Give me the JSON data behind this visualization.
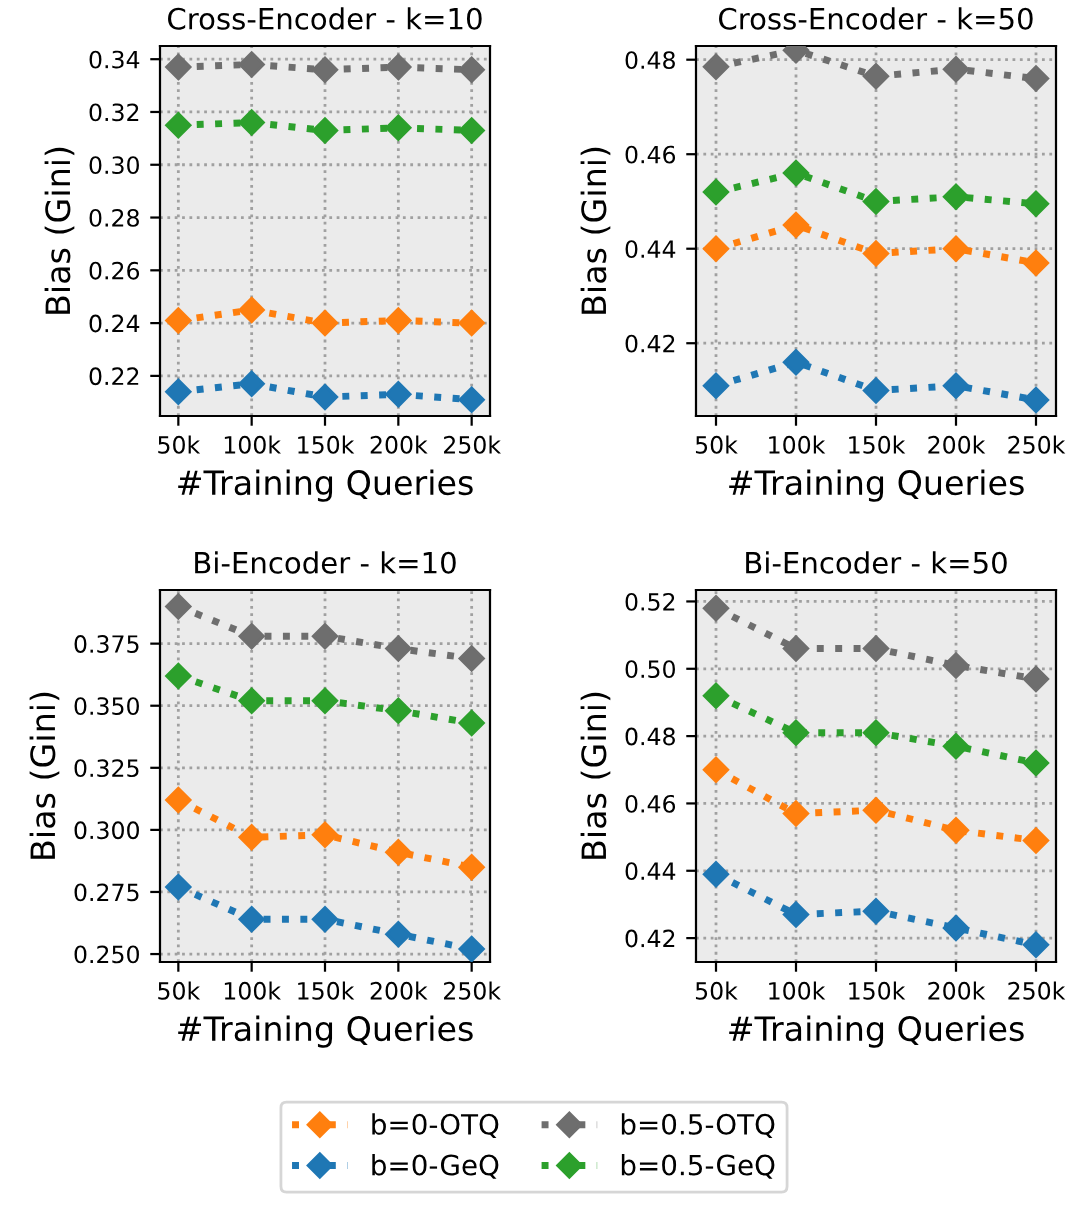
{
  "chart_data": [
    {
      "type": "line",
      "title": "Cross-Encoder - k=10",
      "xlabel": "#Training Queries",
      "ylabel": "Bias (Gini)",
      "categories": [
        "50k",
        "100k",
        "150k",
        "200k",
        "250k"
      ],
      "ylim": [
        0.2048,
        0.345
      ],
      "yticks": [
        {
          "value": 0.22,
          "label": "0.22"
        },
        {
          "value": 0.24,
          "label": "0.24"
        },
        {
          "value": 0.26,
          "label": "0.26"
        },
        {
          "value": 0.28,
          "label": "0.28"
        },
        {
          "value": 0.3,
          "label": "0.30"
        },
        {
          "value": 0.32,
          "label": "0.32"
        },
        {
          "value": 0.34,
          "label": "0.34"
        }
      ],
      "grid": true,
      "marker": "diamond",
      "line_style": "dotted",
      "legend": "bottom",
      "series": [
        {
          "name": "b=0-OTQ",
          "color": "#ff7f0e",
          "values": [
            0.241,
            0.245,
            0.24,
            0.241,
            0.24
          ]
        },
        {
          "name": "b=0-GeQ",
          "color": "#1f77b4",
          "values": [
            0.214,
            0.217,
            0.212,
            0.213,
            0.211
          ]
        },
        {
          "name": "b=0.5-OTQ",
          "color": "#6e6e6e",
          "values": [
            0.337,
            0.338,
            0.336,
            0.337,
            0.336
          ]
        },
        {
          "name": "b=0.5-GeQ",
          "color": "#2ca02c",
          "values": [
            0.315,
            0.316,
            0.313,
            0.314,
            0.313
          ]
        }
      ]
    },
    {
      "type": "line",
      "title": "Cross-Encoder - k=50",
      "xlabel": "#Training Queries",
      "ylabel": "Bias (Gini)",
      "categories": [
        "50k",
        "100k",
        "150k",
        "200k",
        "250k"
      ],
      "ylim": [
        0.4046,
        0.4829
      ],
      "yticks": [
        {
          "value": 0.42,
          "label": "0.42"
        },
        {
          "value": 0.44,
          "label": "0.44"
        },
        {
          "value": 0.46,
          "label": "0.46"
        },
        {
          "value": 0.48,
          "label": "0.48"
        }
      ],
      "grid": true,
      "marker": "diamond",
      "line_style": "dotted",
      "series": [
        {
          "color": "#ff7f0e",
          "values": [
            0.44,
            0.445,
            0.439,
            0.44,
            0.437
          ]
        },
        {
          "color": "#1f77b4",
          "values": [
            0.411,
            0.416,
            0.41,
            0.411,
            0.408
          ]
        },
        {
          "color": "#6e6e6e",
          "values": [
            0.4785,
            0.482,
            0.4765,
            0.478,
            0.476
          ]
        },
        {
          "color": "#2ca02c",
          "values": [
            0.452,
            0.456,
            0.45,
            0.451,
            0.4495
          ]
        }
      ]
    },
    {
      "type": "line",
      "title": "Bi-Encoder - k=10",
      "xlabel": "#Training Queries",
      "ylabel": "Bias (Gini)",
      "categories": [
        "50k",
        "100k",
        "150k",
        "200k",
        "250k"
      ],
      "ylim": [
        0.2468,
        0.3966
      ],
      "yticks": [
        {
          "value": 0.25,
          "label": "0.250"
        },
        {
          "value": 0.275,
          "label": "0.275"
        },
        {
          "value": 0.3,
          "label": "0.300"
        },
        {
          "value": 0.325,
          "label": "0.325"
        },
        {
          "value": 0.35,
          "label": "0.350"
        },
        {
          "value": 0.375,
          "label": "0.375"
        }
      ],
      "grid": true,
      "marker": "diamond",
      "line_style": "dotted",
      "series": [
        {
          "color": "#ff7f0e",
          "values": [
            0.312,
            0.297,
            0.298,
            0.291,
            0.285
          ]
        },
        {
          "color": "#1f77b4",
          "values": [
            0.277,
            0.264,
            0.264,
            0.258,
            0.252
          ]
        },
        {
          "color": "#6e6e6e",
          "values": [
            0.39,
            0.378,
            0.378,
            0.373,
            0.369
          ]
        },
        {
          "color": "#2ca02c",
          "values": [
            0.362,
            0.352,
            0.352,
            0.348,
            0.343
          ]
        }
      ]
    },
    {
      "type": "line",
      "title": "Bi-Encoder - k=50",
      "xlabel": "#Training Queries",
      "ylabel": "Bias (Gini)",
      "categories": [
        "50k",
        "100k",
        "150k",
        "200k",
        "250k"
      ],
      "ylim": [
        0.4129,
        0.5234
      ],
      "yticks": [
        {
          "value": 0.42,
          "label": "0.42"
        },
        {
          "value": 0.44,
          "label": "0.44"
        },
        {
          "value": 0.46,
          "label": "0.46"
        },
        {
          "value": 0.48,
          "label": "0.48"
        },
        {
          "value": 0.5,
          "label": "0.50"
        },
        {
          "value": 0.52,
          "label": "0.52"
        }
      ],
      "grid": true,
      "marker": "diamond",
      "line_style": "dotted",
      "series": [
        {
          "color": "#ff7f0e",
          "values": [
            0.47,
            0.457,
            0.458,
            0.452,
            0.449
          ]
        },
        {
          "color": "#1f77b4",
          "values": [
            0.439,
            0.427,
            0.428,
            0.423,
            0.418
          ]
        },
        {
          "color": "#6e6e6e",
          "values": [
            0.518,
            0.506,
            0.506,
            0.501,
            0.497
          ]
        },
        {
          "color": "#2ca02c",
          "values": [
            0.492,
            0.481,
            0.481,
            0.477,
            0.472
          ]
        }
      ]
    }
  ]
}
